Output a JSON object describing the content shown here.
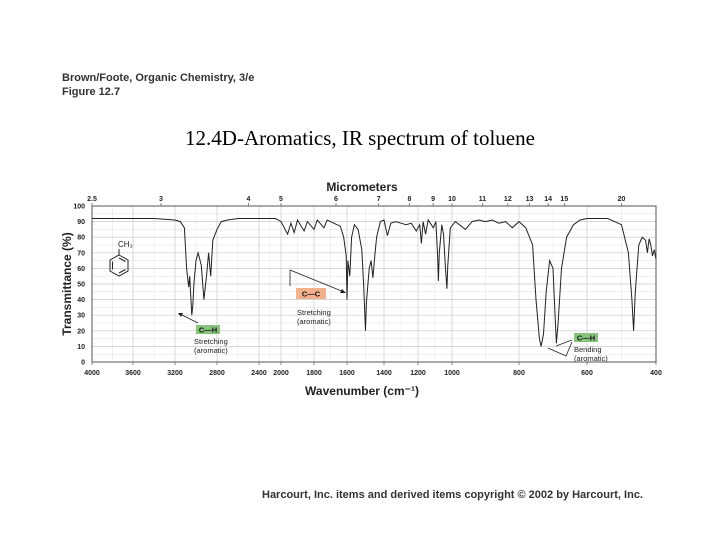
{
  "slide": {
    "book": "Brown/Foote, Organic Chemistry, 3/e",
    "figure": "Figure 12.7",
    "title": "12.4D-Aromatics, IR spectrum of toluene",
    "copyright": "Harcourt, Inc. items and derived items copyright © 2002 by Harcourt, Inc."
  },
  "chart_data": {
    "type": "line",
    "top_axis_label": "Micrometers",
    "xlabel": "Wavenumber (cm⁻¹)",
    "ylabel": "Transmittance (%)",
    "ylim": [
      0,
      100
    ],
    "y_ticks": [
      0,
      10,
      20,
      30,
      40,
      50,
      60,
      70,
      80,
      90,
      100
    ],
    "x_ticks": [
      4000,
      3600,
      3200,
      2800,
      2400,
      2000,
      1800,
      1600,
      1400,
      1200,
      1000,
      800,
      600,
      400
    ],
    "x_tick_labels": [
      "4000",
      "3600",
      "3200",
      "2800",
      "2400",
      "2000",
      "1800",
      "1600",
      "1400",
      "1200",
      "1000",
      "800",
      "600",
      "400"
    ],
    "top_ticks": [
      "2.5",
      "3",
      "4",
      "5",
      "6",
      "7",
      "8",
      "9",
      "10",
      "11",
      "12",
      "13",
      "14",
      "15",
      "20"
    ],
    "grid": true,
    "molecule": {
      "substituent": "CH₃"
    },
    "annotations": [
      {
        "bond": "C—H",
        "line1": "Stretching",
        "line2": "(aromatic)",
        "wavenumber": 3040,
        "transmittance": 30
      },
      {
        "bond": "C—C",
        "line1": "Stretching",
        "line2": "(aromatic)",
        "wavenumber": 1500,
        "transmittance": 20
      },
      {
        "bond": "C—H",
        "line1": "Bending",
        "line2": "(aromatic)",
        "wavenumber": 730,
        "transmittance": 10
      }
    ],
    "series": [
      {
        "points": [
          [
            4000,
            92
          ],
          [
            3800,
            92
          ],
          [
            3600,
            92
          ],
          [
            3400,
            92
          ],
          [
            3300,
            91.5
          ],
          [
            3200,
            91
          ],
          [
            3150,
            90
          ],
          [
            3110,
            86
          ],
          [
            3090,
            60
          ],
          [
            3070,
            48
          ],
          [
            3060,
            55
          ],
          [
            3040,
            30
          ],
          [
            3030,
            36
          ],
          [
            3020,
            50
          ],
          [
            3000,
            65
          ],
          [
            2980,
            70
          ],
          [
            2950,
            62
          ],
          [
            2925,
            40
          ],
          [
            2900,
            55
          ],
          [
            2880,
            70
          ],
          [
            2860,
            55
          ],
          [
            2840,
            78
          ],
          [
            2800,
            85
          ],
          [
            2760,
            90
          ],
          [
            2700,
            91
          ],
          [
            2600,
            92
          ],
          [
            2500,
            92
          ],
          [
            2400,
            92
          ],
          [
            2300,
            92
          ],
          [
            2200,
            92
          ],
          [
            2100,
            92
          ],
          [
            2050,
            91
          ],
          [
            2000,
            90
          ],
          [
            1960,
            82
          ],
          [
            1940,
            89
          ],
          [
            1920,
            83
          ],
          [
            1900,
            91
          ],
          [
            1860,
            84
          ],
          [
            1840,
            90
          ],
          [
            1800,
            85
          ],
          [
            1780,
            91
          ],
          [
            1740,
            86
          ],
          [
            1720,
            91
          ],
          [
            1700,
            90
          ],
          [
            1680,
            89
          ],
          [
            1640,
            87
          ],
          [
            1620,
            80
          ],
          [
            1605,
            68
          ],
          [
            1600,
            40
          ],
          [
            1595,
            65
          ],
          [
            1585,
            55
          ],
          [
            1575,
            80
          ],
          [
            1560,
            88
          ],
          [
            1540,
            85
          ],
          [
            1520,
            72
          ],
          [
            1510,
            50
          ],
          [
            1500,
            20
          ],
          [
            1495,
            38
          ],
          [
            1480,
            60
          ],
          [
            1470,
            65
          ],
          [
            1460,
            54
          ],
          [
            1450,
            68
          ],
          [
            1440,
            80
          ],
          [
            1420,
            90
          ],
          [
            1400,
            91
          ],
          [
            1380,
            81
          ],
          [
            1360,
            89
          ],
          [
            1330,
            90
          ],
          [
            1300,
            89
          ],
          [
            1270,
            88
          ],
          [
            1240,
            89
          ],
          [
            1210,
            84
          ],
          [
            1190,
            88
          ],
          [
            1180,
            76
          ],
          [
            1170,
            90
          ],
          [
            1155,
            82
          ],
          [
            1140,
            91
          ],
          [
            1110,
            86
          ],
          [
            1095,
            90
          ],
          [
            1085,
            68
          ],
          [
            1080,
            52
          ],
          [
            1075,
            70
          ],
          [
            1060,
            88
          ],
          [
            1050,
            82
          ],
          [
            1040,
            63
          ],
          [
            1030,
            47
          ],
          [
            1025,
            62
          ],
          [
            1010,
            86
          ],
          [
            990,
            90
          ],
          [
            960,
            85
          ],
          [
            940,
            90
          ],
          [
            920,
            91
          ],
          [
            900,
            90
          ],
          [
            880,
            91
          ],
          [
            860,
            89
          ],
          [
            840,
            90
          ],
          [
            820,
            86
          ],
          [
            800,
            90
          ],
          [
            780,
            86
          ],
          [
            760,
            75
          ],
          [
            750,
            40
          ],
          [
            740,
            15
          ],
          [
            735,
            10
          ],
          [
            728,
            18
          ],
          [
            720,
            45
          ],
          [
            710,
            65
          ],
          [
            700,
            60
          ],
          [
            695,
            35
          ],
          [
            690,
            12
          ],
          [
            685,
            25
          ],
          [
            675,
            60
          ],
          [
            660,
            80
          ],
          [
            640,
            88
          ],
          [
            620,
            91
          ],
          [
            600,
            92
          ],
          [
            560,
            92
          ],
          [
            540,
            92
          ],
          [
            520,
            90
          ],
          [
            500,
            88
          ],
          [
            480,
            70
          ],
          [
            470,
            40
          ],
          [
            465,
            20
          ],
          [
            460,
            45
          ],
          [
            450,
            75
          ],
          [
            440,
            80
          ],
          [
            430,
            78
          ],
          [
            425,
            70
          ],
          [
            420,
            79
          ],
          [
            415,
            75
          ],
          [
            410,
            68
          ],
          [
            405,
            72
          ],
          [
            400,
            66
          ]
        ]
      }
    ]
  }
}
